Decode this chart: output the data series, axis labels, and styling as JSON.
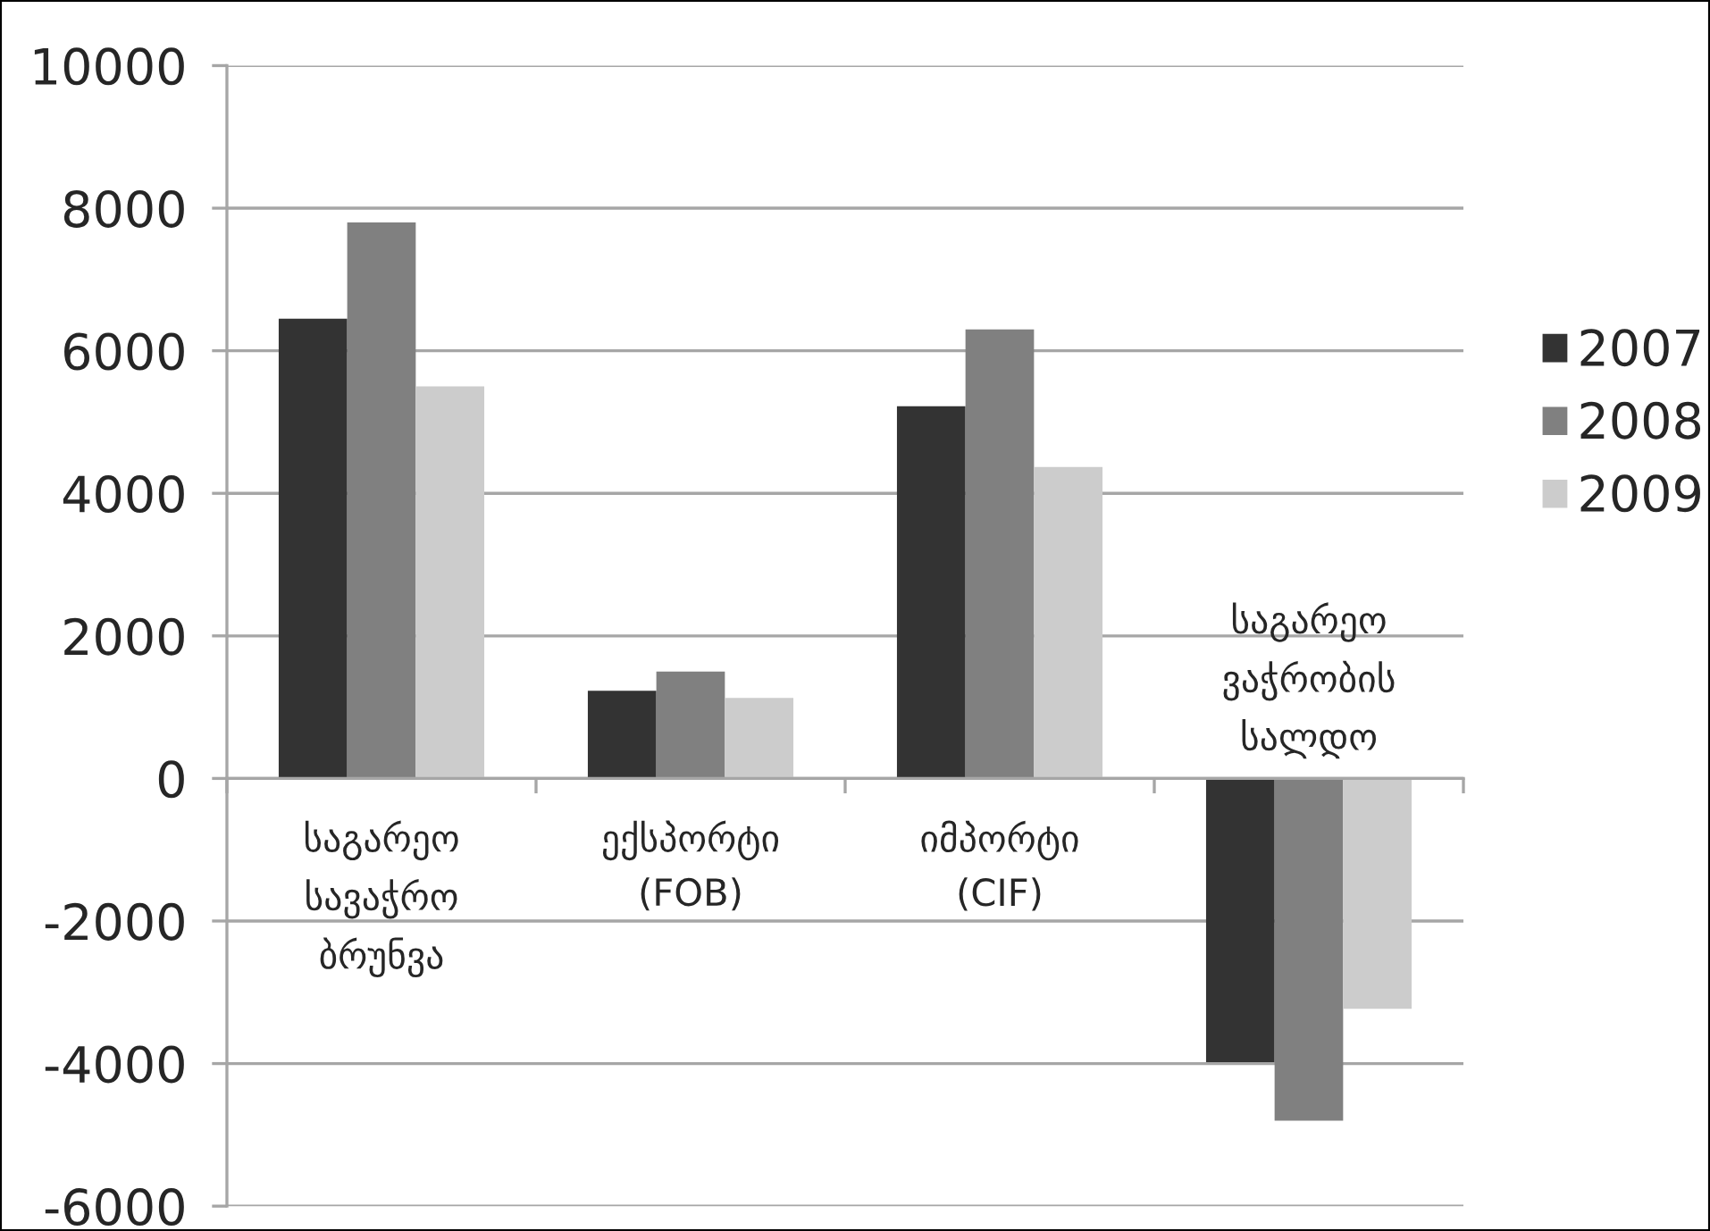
{
  "chart_data": {
    "type": "bar",
    "categories": [
      "საგარეო\nსავაჭრო\nბრუნვა",
      "ექსპორტი\n(FOB)",
      "იმპორტი\n(CIF)",
      "საგარეო\nვაჭრობის\nსალდო"
    ],
    "series": [
      {
        "name": "2007",
        "color": "#333333",
        "values": [
          6450,
          1230,
          5220,
          -3980
        ]
      },
      {
        "name": "2008",
        "color": "#808080",
        "values": [
          7800,
          1500,
          6300,
          -4800
        ]
      },
      {
        "name": "2009",
        "color": "#cccccc",
        "values": [
          5500,
          1130,
          4370,
          -3230
        ]
      }
    ],
    "ylim": [
      -6000,
      10000
    ],
    "yticks": [
      -6000,
      -4000,
      -2000,
      0,
      2000,
      4000,
      6000,
      8000,
      10000
    ],
    "grid": "y",
    "legend": "right"
  }
}
